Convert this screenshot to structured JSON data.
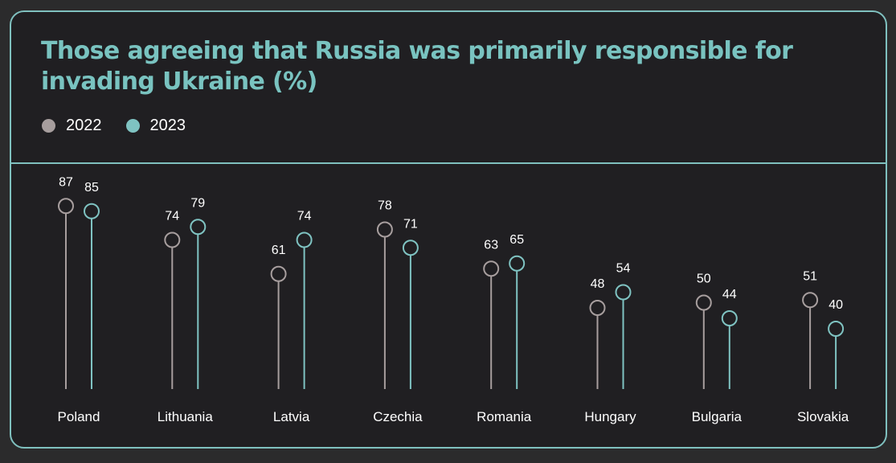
{
  "chart_data": {
    "type": "lollipop",
    "title": "Those agreeing that Russia was primarily responsible for invading Ukraine  (%)",
    "categories": [
      "Poland",
      "Lithuania",
      "Latvia",
      "Czechia",
      "Romania",
      "Hungary",
      "Bulgaria",
      "Slovakia"
    ],
    "series": [
      {
        "name": "2022",
        "color": "#a79e9e",
        "values": [
          87,
          74,
          61,
          78,
          63,
          48,
          50,
          51
        ]
      },
      {
        "name": "2023",
        "color": "#7fc3c2",
        "values": [
          85,
          79,
          74,
          71,
          65,
          54,
          44,
          40
        ]
      }
    ],
    "legend_position": "top-left",
    "grid": false,
    "axis_visible": false,
    "data_labels": true
  }
}
